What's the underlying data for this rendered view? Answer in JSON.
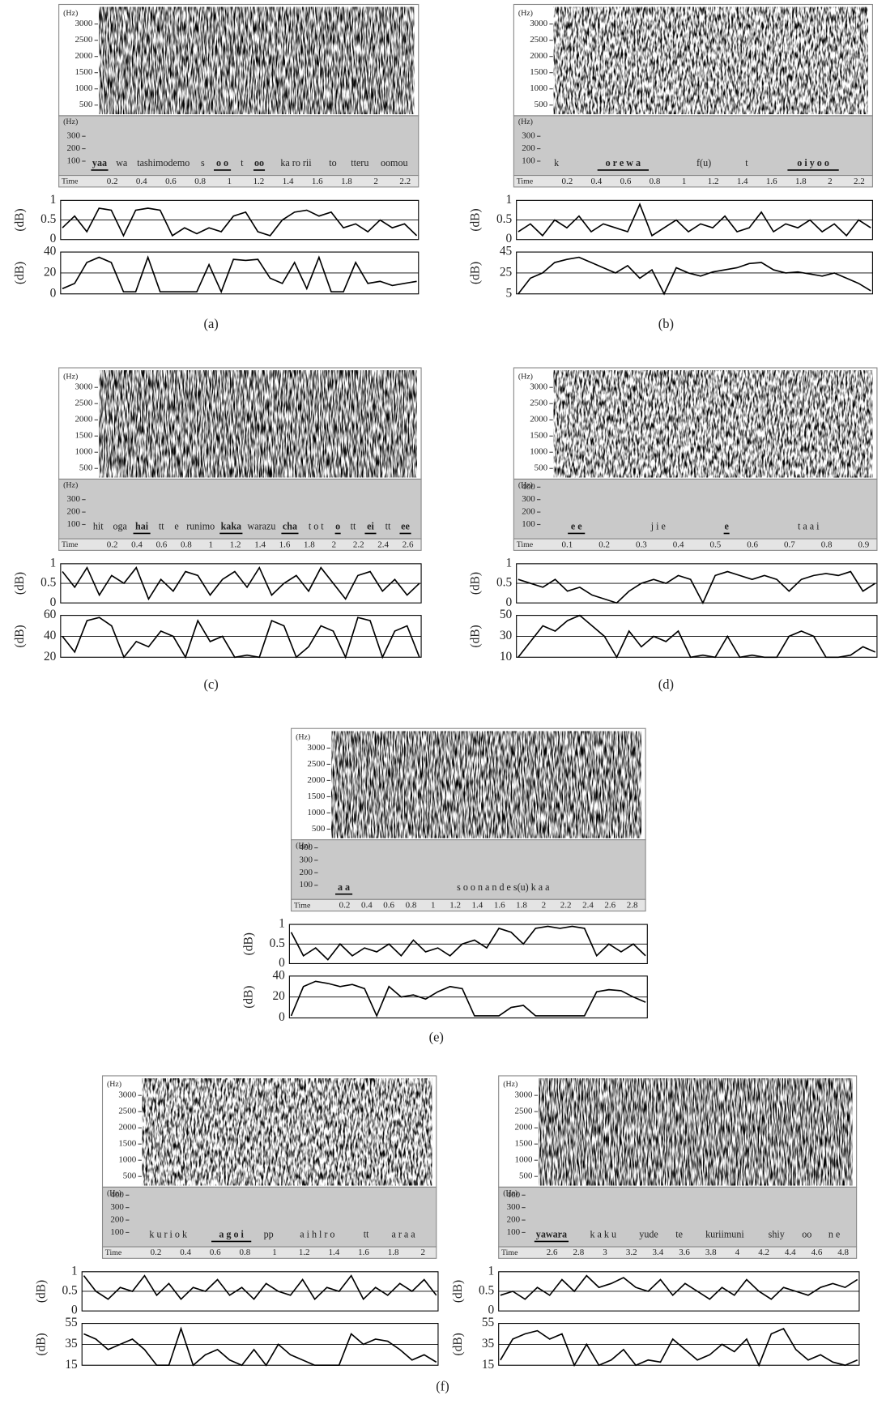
{
  "chart_data": [
    {
      "type": "line",
      "ylabel": "(dB)",
      "ylim": [
        0,
        1
      ],
      "yticks": [
        0,
        0.5,
        1
      ],
      "grid": true,
      "color": "#000",
      "values": [
        0.3,
        0.6,
        0.2,
        0.8,
        0.75,
        0.1,
        0.75,
        0.8,
        0.75,
        0.1,
        0.3,
        0.15,
        0.3,
        0.2,
        0.6,
        0.7,
        0.2,
        0.1,
        0.5,
        0.7,
        0.75,
        0.6,
        0.7,
        0.3,
        0.4,
        0.2,
        0.5,
        0.3,
        0.4,
        0.1
      ]
    },
    {
      "type": "line",
      "ylabel": "(dB)",
      "ylim": [
        0,
        40
      ],
      "yticks": [
        0,
        20,
        40
      ],
      "grid": true,
      "color": "#000",
      "values": [
        5,
        10,
        30,
        35,
        30,
        2,
        2,
        35,
        2,
        2,
        2,
        2,
        28,
        2,
        33,
        32,
        33,
        15,
        10,
        30,
        5,
        35,
        2,
        2,
        30,
        10,
        12,
        8,
        10,
        12
      ]
    },
    {
      "type": "line",
      "ylabel": "(dB)",
      "ylim": [
        0,
        1
      ],
      "yticks": [
        0,
        0.5,
        1
      ],
      "grid": true,
      "color": "#000",
      "values": [
        0.2,
        0.4,
        0.1,
        0.5,
        0.3,
        0.6,
        0.2,
        0.4,
        0.3,
        0.2,
        0.9,
        0.1,
        0.3,
        0.5,
        0.2,
        0.4,
        0.3,
        0.6,
        0.2,
        0.3,
        0.7,
        0.2,
        0.4,
        0.3,
        0.5,
        0.2,
        0.4,
        0.1,
        0.5,
        0.3
      ]
    },
    {
      "type": "line",
      "ylabel": "(dB)",
      "ylim": [
        5,
        45
      ],
      "yticks": [
        5,
        25,
        45
      ],
      "grid": true,
      "color": "#000",
      "values": [
        5,
        20,
        25,
        35,
        38,
        40,
        35,
        30,
        25,
        32,
        20,
        28,
        5,
        30,
        25,
        22,
        26,
        28,
        30,
        34,
        35,
        28,
        25,
        26,
        24,
        22,
        25,
        20,
        15,
        8
      ]
    },
    {
      "type": "line",
      "ylabel": "(dB)",
      "ylim": [
        0,
        1
      ],
      "yticks": [
        0,
        0.5,
        1
      ],
      "grid": true,
      "color": "#000",
      "values": [
        0.8,
        0.4,
        0.9,
        0.2,
        0.7,
        0.5,
        0.9,
        0.1,
        0.6,
        0.3,
        0.8,
        0.7,
        0.2,
        0.6,
        0.8,
        0.4,
        0.9,
        0.2,
        0.5,
        0.7,
        0.3,
        0.9,
        0.5,
        0.1,
        0.7,
        0.8,
        0.3,
        0.6,
        0.2,
        0.5
      ]
    },
    {
      "type": "line",
      "ylabel": "(dB)",
      "ylim": [
        20,
        60
      ],
      "yticks": [
        20,
        40,
        60
      ],
      "grid": true,
      "color": "#000",
      "values": [
        40,
        25,
        55,
        58,
        50,
        20,
        35,
        30,
        45,
        40,
        20,
        55,
        35,
        40,
        20,
        22,
        20,
        55,
        50,
        20,
        30,
        50,
        45,
        20,
        58,
        55,
        20,
        45,
        50,
        20
      ]
    },
    {
      "type": "line",
      "ylabel": "(dB)",
      "ylim": [
        0,
        1
      ],
      "yticks": [
        0,
        0.5,
        1
      ],
      "grid": true,
      "color": "#000",
      "values": [
        0.6,
        0.5,
        0.4,
        0.6,
        0.3,
        0.4,
        0.2,
        0.1,
        0,
        0.3,
        0.5,
        0.6,
        0.5,
        0.7,
        0.6,
        0,
        0.7,
        0.8,
        0.7,
        0.6,
        0.7,
        0.6,
        0.3,
        0.6,
        0.7,
        0.75,
        0.7,
        0.8,
        0.3,
        0.5
      ]
    },
    {
      "type": "line",
      "ylabel": "(dB)",
      "ylim": [
        10,
        50
      ],
      "yticks": [
        10,
        30,
        50
      ],
      "grid": true,
      "color": "#000",
      "values": [
        10,
        25,
        40,
        35,
        45,
        50,
        40,
        30,
        10,
        35,
        20,
        30,
        25,
        35,
        10,
        12,
        10,
        30,
        10,
        12,
        10,
        10,
        30,
        35,
        30,
        10,
        10,
        12,
        20,
        15
      ]
    },
    {
      "type": "line",
      "ylabel": "(dB)",
      "ylim": [
        0,
        1
      ],
      "yticks": [
        0,
        0.5,
        1
      ],
      "grid": true,
      "color": "#000",
      "values": [
        0.8,
        0.2,
        0.4,
        0.1,
        0.5,
        0.2,
        0.4,
        0.3,
        0.5,
        0.2,
        0.6,
        0.3,
        0.4,
        0.2,
        0.5,
        0.6,
        0.4,
        0.9,
        0.8,
        0.5,
        0.9,
        0.95,
        0.9,
        0.95,
        0.9,
        0.2,
        0.5,
        0.3,
        0.5,
        0.2
      ]
    },
    {
      "type": "line",
      "ylabel": "(dB)",
      "ylim": [
        0,
        40
      ],
      "yticks": [
        0,
        20,
        40
      ],
      "grid": true,
      "color": "#000",
      "values": [
        2,
        30,
        35,
        33,
        30,
        32,
        28,
        2,
        30,
        20,
        22,
        18,
        25,
        30,
        28,
        2,
        2,
        2,
        10,
        12,
        2,
        2,
        2,
        2,
        2,
        25,
        27,
        26,
        20,
        15
      ]
    },
    {
      "type": "line",
      "ylabel": "(dB)",
      "ylim": [
        0,
        1
      ],
      "yticks": [
        0,
        0.5,
        1
      ],
      "grid": true,
      "color": "#000",
      "values": [
        0.9,
        0.5,
        0.3,
        0.6,
        0.5,
        0.9,
        0.4,
        0.7,
        0.3,
        0.6,
        0.5,
        0.8,
        0.4,
        0.6,
        0.3,
        0.7,
        0.5,
        0.4,
        0.8,
        0.3,
        0.6,
        0.5,
        0.9,
        0.3,
        0.6,
        0.4,
        0.7,
        0.5,
        0.8,
        0.4
      ]
    },
    {
      "type": "line",
      "ylabel": "(dB)",
      "ylim": [
        15,
        55
      ],
      "yticks": [
        15,
        35,
        55
      ],
      "grid": true,
      "color": "#000",
      "values": [
        45,
        40,
        30,
        35,
        40,
        30,
        15,
        15,
        50,
        15,
        25,
        30,
        20,
        15,
        30,
        15,
        35,
        25,
        20,
        15,
        15,
        15,
        45,
        35,
        40,
        38,
        30,
        20,
        25,
        18
      ]
    },
    {
      "type": "line",
      "ylabel": "(dB)",
      "ylim": [
        0,
        1
      ],
      "yticks": [
        0,
        0.5,
        1
      ],
      "grid": true,
      "color": "#000",
      "values": [
        0.4,
        0.5,
        0.3,
        0.6,
        0.4,
        0.8,
        0.5,
        0.9,
        0.6,
        0.7,
        0.85,
        0.6,
        0.5,
        0.8,
        0.4,
        0.7,
        0.5,
        0.3,
        0.6,
        0.4,
        0.8,
        0.5,
        0.3,
        0.6,
        0.5,
        0.4,
        0.6,
        0.7,
        0.6,
        0.8
      ]
    },
    {
      "type": "line",
      "ylabel": "(dB)",
      "ylim": [
        15,
        55
      ],
      "yticks": [
        15,
        35,
        55
      ],
      "grid": true,
      "color": "#000",
      "values": [
        20,
        40,
        45,
        48,
        40,
        45,
        15,
        35,
        15,
        20,
        30,
        15,
        20,
        18,
        40,
        30,
        20,
        25,
        35,
        28,
        40,
        15,
        45,
        50,
        30,
        20,
        25,
        18,
        15,
        20
      ]
    }
  ],
  "panels": [
    {
      "spec_unit": "(Hz)",
      "spec_yticks": [
        3000,
        2500,
        2000,
        1500,
        1000,
        500
      ],
      "f0_unit": "(Hz)",
      "f0_yticks": [
        300,
        200,
        100
      ],
      "time_label": "Time",
      "time_ticks": [
        0.2,
        0.4,
        0.6,
        0.8,
        1,
        1.2,
        1.4,
        1.6,
        1.8,
        2,
        2.2
      ],
      "syllables": [
        {
          "text": "yaa",
          "emph": true
        },
        {
          "text": "wa"
        },
        {
          "text": "tashimodemo"
        },
        {
          "text": "s"
        },
        {
          "text": "o o",
          "emph": true
        },
        {
          "text": "t"
        },
        {
          "text": "oo",
          "emph": true
        },
        {
          "text": "ka ro rii"
        },
        {
          "text": "to"
        },
        {
          "text": "tteru"
        },
        {
          "text": "oomou"
        }
      ]
    },
    {
      "spec_unit": "(Hz)",
      "spec_yticks": [
        3000,
        2500,
        2000,
        1500,
        1000,
        500
      ],
      "f0_unit": "(Hz)",
      "f0_yticks": [
        300,
        200,
        100
      ],
      "time_label": "Time",
      "time_ticks": [
        0.2,
        0.4,
        0.6,
        0.8,
        1,
        1.2,
        1.4,
        1.6,
        1.8,
        2,
        2.2
      ],
      "syllables": [
        {
          "text": "k"
        },
        {
          "text": "o r e w a",
          "emph": true
        },
        {
          "text": "f(u)"
        },
        {
          "text": "t"
        },
        {
          "text": "o i y o o",
          "emph": true
        }
      ]
    },
    {
      "spec_unit": "(Hz)",
      "spec_yticks": [
        3000,
        2500,
        2000,
        1500,
        1000,
        500
      ],
      "f0_unit": "(Hz)",
      "f0_yticks": [
        300,
        200,
        100
      ],
      "time_label": "Time",
      "time_ticks": [
        0.2,
        0.4,
        0.6,
        0.8,
        1,
        1.2,
        1.4,
        1.6,
        1.8,
        2,
        2.2,
        2.4,
        2.6
      ],
      "syllables": [
        {
          "text": "hit"
        },
        {
          "text": "oga"
        },
        {
          "text": "hai",
          "emph": true
        },
        {
          "text": "tt"
        },
        {
          "text": "e"
        },
        {
          "text": "runimo"
        },
        {
          "text": "kaka",
          "emph": true
        },
        {
          "text": "warazu"
        },
        {
          "text": "cha",
          "emph": true
        },
        {
          "text": "t o t"
        },
        {
          "text": "o",
          "emph": true
        },
        {
          "text": "tt"
        },
        {
          "text": "ei",
          "emph": true
        },
        {
          "text": "tt"
        },
        {
          "text": "ee",
          "emph": true
        }
      ]
    },
    {
      "spec_unit": "(Hz)",
      "spec_yticks": [
        3000,
        2500,
        2000,
        1500,
        1000,
        500
      ],
      "f0_unit": "(Hz)",
      "f0_yticks": [
        400,
        300,
        200,
        100
      ],
      "time_label": "Time",
      "time_ticks": [
        0.1,
        0.2,
        0.3,
        0.4,
        0.5,
        0.6,
        0.7,
        0.8,
        0.9
      ],
      "syllables": [
        {
          "text": "e e",
          "emph": true
        },
        {
          "text": "j i e"
        },
        {
          "text": "e",
          "emph": true
        },
        {
          "text": "t a a i"
        }
      ]
    },
    {
      "spec_unit": "(Hz)",
      "spec_yticks": [
        3000,
        2500,
        2000,
        1500,
        1000,
        500
      ],
      "f0_unit": "(Hz)",
      "f0_yticks": [
        400,
        300,
        200,
        100
      ],
      "time_label": "Time",
      "time_ticks": [
        0.2,
        0.4,
        0.6,
        0.8,
        1,
        1.2,
        1.4,
        1.6,
        1.8,
        2,
        2.2,
        2.4,
        2.6,
        2.8
      ],
      "syllables": [
        {
          "text": "a a",
          "emph": true
        },
        {
          "text": "s o o n a n d e s(u) k a a"
        }
      ]
    },
    {
      "spec_unit": "(Hz)",
      "spec_yticks": [
        3000,
        2500,
        2000,
        1500,
        1000,
        500
      ],
      "f0_unit": "(Hz)",
      "f0_yticks": [
        400,
        300,
        200,
        100
      ],
      "time_label": "Time",
      "time_ticks": [
        0.2,
        0.4,
        0.6,
        0.8,
        1,
        1.2,
        1.4,
        1.6,
        1.8,
        2
      ],
      "syllables": [
        {
          "text": "k u r i o k"
        },
        {
          "text": "a g o i",
          "emph": true
        },
        {
          "text": "pp"
        },
        {
          "text": "a i h l r o"
        },
        {
          "text": "tt"
        },
        {
          "text": "a r a a"
        }
      ]
    },
    {
      "spec_unit": "(Hz)",
      "spec_yticks": [
        3000,
        2500,
        2000,
        1500,
        1000,
        500
      ],
      "f0_unit": "(Hz)",
      "f0_yticks": [
        400,
        300,
        200,
        100
      ],
      "time_label": "Time",
      "time_ticks": [
        2.6,
        2.8,
        3,
        3.2,
        3.4,
        3.6,
        3.8,
        4,
        4.2,
        4.4,
        4.6,
        4.8
      ],
      "syllables": [
        {
          "text": "yawara",
          "emph": true
        },
        {
          "text": "k a k u"
        },
        {
          "text": "yude"
        },
        {
          "text": "te"
        },
        {
          "text": "kuriimuni"
        },
        {
          "text": "shiy"
        },
        {
          "text": "oo"
        },
        {
          "text": "n e"
        }
      ]
    }
  ],
  "captions": [
    "(a)",
    "(b)",
    "(c)",
    "(d)",
    "(e)",
    "(f)"
  ]
}
